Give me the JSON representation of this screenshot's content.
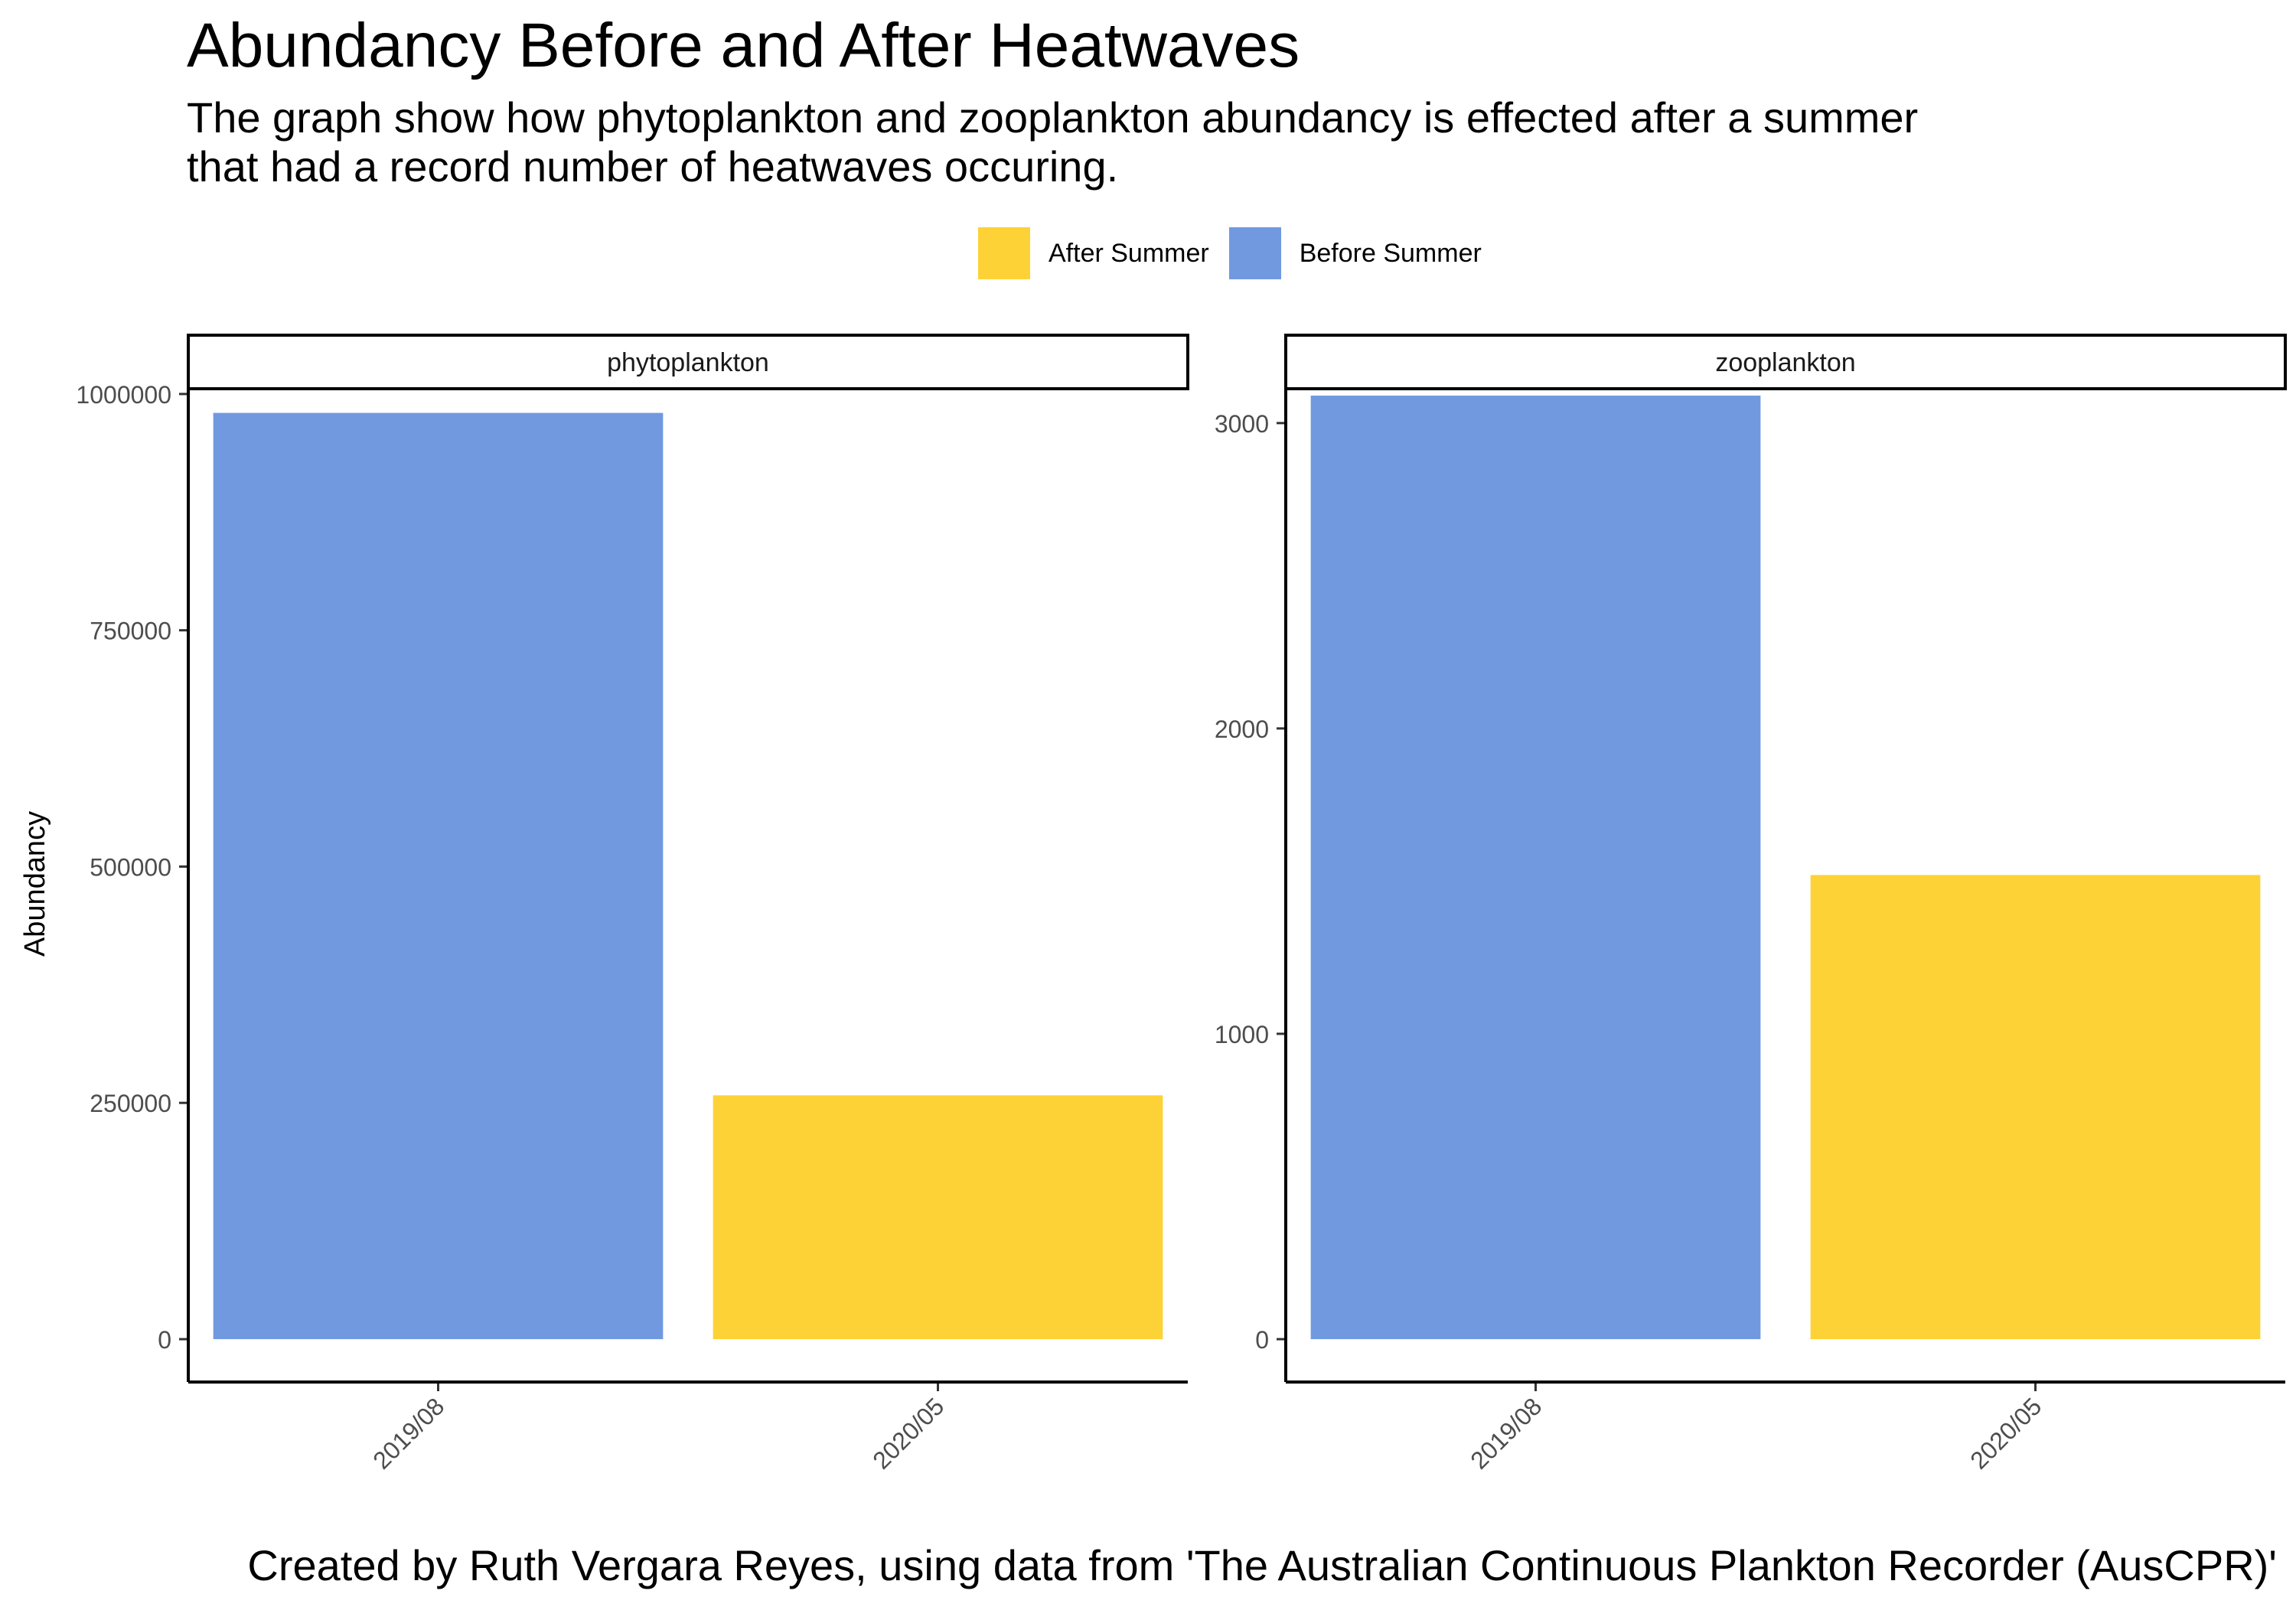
{
  "title": "Abundancy Before and After Heatwaves",
  "subtitle_lines": [
    "The graph show how phytoplankton and zooplankton abundancy is effected after a summer",
    "that had a record number of heatwaves occuring."
  ],
  "legend": [
    {
      "label": "After Summer",
      "color": "#FDD237"
    },
    {
      "label": "Before Summer",
      "color": "#7099E0"
    }
  ],
  "caption": "Created by Ruth Vergara Reyes, using data from 'The Australian Continuous Plankton Recorder (AusCPR)'",
  "chart_data": [
    {
      "type": "bar",
      "facet": "phytoplankton",
      "ylabel": "Abundancy",
      "categories": [
        "2019/08",
        "2020/05"
      ],
      "values": [
        980000,
        258000
      ],
      "groups": [
        "Before Summer",
        "After Summer"
      ],
      "ylim": [
        0,
        1050000
      ],
      "yticks": [
        0,
        250000,
        500000,
        750000,
        1000000
      ]
    },
    {
      "type": "bar",
      "facet": "zooplankton",
      "ylabel": "",
      "categories": [
        "2019/08",
        "2020/05"
      ],
      "values": [
        3090,
        1520
      ],
      "groups": [
        "Before Summer",
        "After Summer"
      ],
      "ylim": [
        0,
        3250
      ],
      "yticks": [
        0,
        1000,
        2000,
        3000
      ]
    }
  ]
}
